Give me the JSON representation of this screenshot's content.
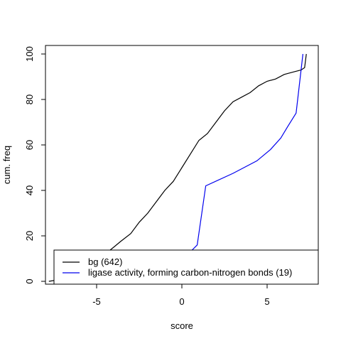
{
  "chart_data": {
    "type": "line",
    "title": "",
    "xlabel": "score",
    "ylabel": "cum. freq",
    "xlim": [
      -8,
      8
    ],
    "ylim": [
      0,
      100
    ],
    "x_ticks": [
      {
        "value": -5,
        "label": "-5"
      },
      {
        "value": 0,
        "label": "0"
      },
      {
        "value": 5,
        "label": "5"
      }
    ],
    "y_ticks": [
      {
        "value": 0,
        "label": "0"
      },
      {
        "value": 20,
        "label": "20"
      },
      {
        "value": 40,
        "label": "40"
      },
      {
        "value": 60,
        "label": "60"
      },
      {
        "value": 80,
        "label": "80"
      },
      {
        "value": 100,
        "label": "100"
      }
    ],
    "grid": false,
    "legend_position": "bottom",
    "series": [
      {
        "name": "bg (642)",
        "color": "#000000",
        "points": [
          [
            -7.8,
            0
          ],
          [
            -7.0,
            1
          ],
          [
            -6.5,
            3
          ],
          [
            -6.0,
            5
          ],
          [
            -5.5,
            7
          ],
          [
            -5.0,
            9.5
          ],
          [
            -4.5,
            12
          ],
          [
            -4.0,
            15
          ],
          [
            -3.6,
            17.5
          ],
          [
            -3.0,
            21
          ],
          [
            -2.5,
            26
          ],
          [
            -2.0,
            30
          ],
          [
            -1.5,
            35
          ],
          [
            -1.0,
            40
          ],
          [
            -0.5,
            44
          ],
          [
            0.0,
            50
          ],
          [
            0.5,
            56
          ],
          [
            1.0,
            62
          ],
          [
            1.5,
            65
          ],
          [
            2.0,
            70
          ],
          [
            2.5,
            75
          ],
          [
            3.0,
            79
          ],
          [
            3.5,
            81
          ],
          [
            4.0,
            83
          ],
          [
            4.5,
            86
          ],
          [
            5.0,
            88
          ],
          [
            5.5,
            89
          ],
          [
            6.0,
            91
          ],
          [
            6.5,
            92
          ],
          [
            7.0,
            93
          ],
          [
            7.2,
            94
          ],
          [
            7.3,
            100
          ]
        ]
      },
      {
        "name": "ligase activity, forming carbon-nitrogen bonds (19)",
        "color": "#0000ee",
        "points": [
          [
            -6.8,
            0
          ],
          [
            -5.0,
            3
          ],
          [
            -3.0,
            6
          ],
          [
            -1.0,
            9
          ],
          [
            0.5,
            13
          ],
          [
            0.9,
            16
          ],
          [
            1.4,
            42
          ],
          [
            3.0,
            47.5
          ],
          [
            4.4,
            53
          ],
          [
            5.2,
            58
          ],
          [
            5.8,
            63
          ],
          [
            6.2,
            68
          ],
          [
            6.7,
            74
          ],
          [
            7.1,
            100
          ]
        ]
      }
    ]
  }
}
